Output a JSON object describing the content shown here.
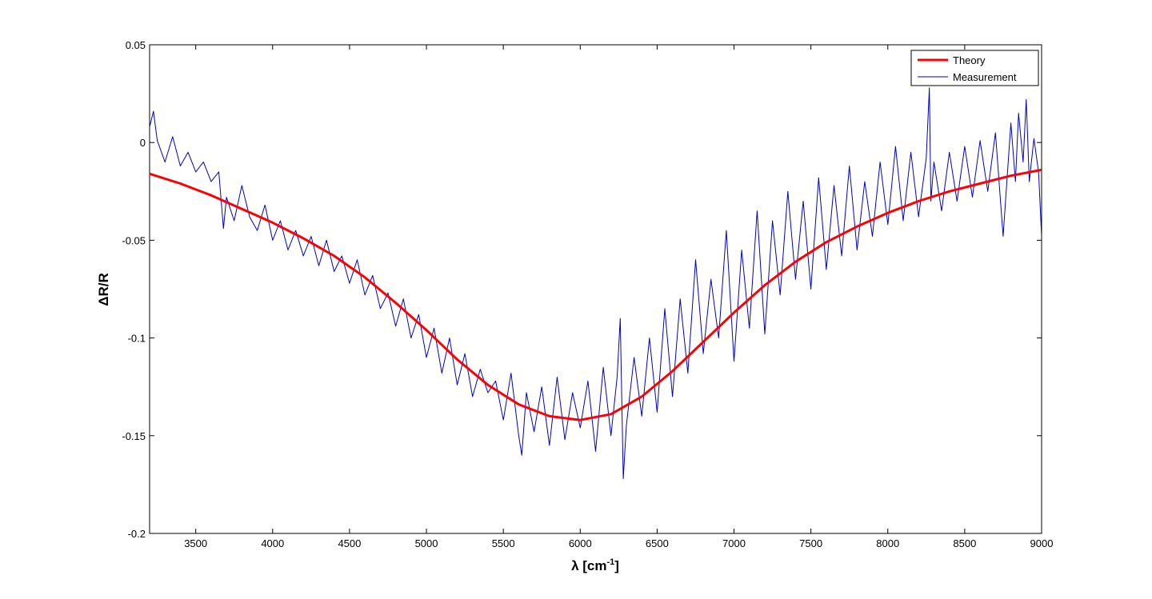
{
  "chart_data": {
    "type": "line",
    "title": "",
    "xlabel": {
      "main": "λ [cm",
      "sup": "-1",
      "close": "]"
    },
    "ylabel": "ΔR/R",
    "xlim": [
      3200,
      9000
    ],
    "ylim": [
      -0.2,
      0.05
    ],
    "x_ticks": [
      3500,
      4000,
      4500,
      5000,
      5500,
      6000,
      6500,
      7000,
      7500,
      8000,
      8500,
      9000
    ],
    "x_tick_labels": [
      "3500",
      "4000",
      "4500",
      "5000",
      "5500",
      "6000",
      "6500",
      "7000",
      "7500",
      "8000",
      "8500",
      "9000"
    ],
    "y_ticks": [
      -0.2,
      -0.15,
      -0.1,
      -0.05,
      0,
      0.05
    ],
    "y_tick_labels": [
      "-0.2",
      "-0.15",
      "-0.1",
      "-0.05",
      "0",
      "0.05"
    ],
    "grid": false,
    "legend_position": "top-right",
    "colors": {
      "theory": "#ff0000",
      "measurement": "#0000cc"
    },
    "series": [
      {
        "name": "Theory",
        "x": [
          3200,
          3400,
          3600,
          3800,
          4000,
          4200,
          4400,
          4600,
          4800,
          5000,
          5200,
          5400,
          5600,
          5800,
          6000,
          6200,
          6400,
          6600,
          6800,
          7000,
          7200,
          7400,
          7600,
          7800,
          8000,
          8200,
          8400,
          8600,
          8800,
          9000
        ],
        "values": [
          -0.016,
          -0.021,
          -0.027,
          -0.034,
          -0.041,
          -0.049,
          -0.058,
          -0.069,
          -0.082,
          -0.096,
          -0.111,
          -0.124,
          -0.134,
          -0.14,
          -0.142,
          -0.139,
          -0.13,
          -0.117,
          -0.102,
          -0.087,
          -0.073,
          -0.061,
          -0.051,
          -0.043,
          -0.036,
          -0.03,
          -0.025,
          -0.021,
          -0.017,
          -0.014
        ]
      },
      {
        "name": "Measurement",
        "x": [
          3200,
          3225,
          3250,
          3300,
          3350,
          3400,
          3450,
          3500,
          3550,
          3600,
          3650,
          3680,
          3700,
          3750,
          3800,
          3850,
          3900,
          3950,
          4000,
          4050,
          4100,
          4150,
          4200,
          4250,
          4300,
          4350,
          4400,
          4450,
          4500,
          4550,
          4600,
          4650,
          4700,
          4750,
          4800,
          4850,
          4900,
          4950,
          5000,
          5050,
          5100,
          5150,
          5200,
          5250,
          5300,
          5350,
          5400,
          5450,
          5500,
          5550,
          5600,
          5620,
          5650,
          5700,
          5750,
          5800,
          5850,
          5900,
          5950,
          6000,
          6050,
          6100,
          6150,
          6200,
          6240,
          6260,
          6280,
          6300,
          6350,
          6400,
          6450,
          6500,
          6550,
          6600,
          6650,
          6700,
          6750,
          6800,
          6850,
          6900,
          6950,
          7000,
          7050,
          7100,
          7150,
          7200,
          7250,
          7300,
          7350,
          7400,
          7450,
          7500,
          7550,
          7600,
          7650,
          7700,
          7750,
          7800,
          7850,
          7900,
          7950,
          8000,
          8050,
          8100,
          8150,
          8200,
          8250,
          8270,
          8280,
          8300,
          8350,
          8400,
          8450,
          8500,
          8550,
          8600,
          8650,
          8700,
          8750,
          8800,
          8830,
          8850,
          8880,
          8900,
          8920,
          8950,
          8980,
          9000
        ],
        "values": [
          0.008,
          0.016,
          0.001,
          -0.01,
          0.003,
          -0.012,
          -0.005,
          -0.015,
          -0.01,
          -0.02,
          -0.015,
          -0.044,
          -0.028,
          -0.04,
          -0.022,
          -0.038,
          -0.045,
          -0.032,
          -0.05,
          -0.04,
          -0.055,
          -0.045,
          -0.058,
          -0.048,
          -0.063,
          -0.05,
          -0.066,
          -0.058,
          -0.072,
          -0.06,
          -0.078,
          -0.068,
          -0.085,
          -0.077,
          -0.094,
          -0.08,
          -0.1,
          -0.088,
          -0.11,
          -0.095,
          -0.118,
          -0.1,
          -0.124,
          -0.108,
          -0.13,
          -0.116,
          -0.128,
          -0.122,
          -0.142,
          -0.118,
          -0.15,
          -0.16,
          -0.128,
          -0.148,
          -0.125,
          -0.155,
          -0.12,
          -0.152,
          -0.128,
          -0.146,
          -0.122,
          -0.158,
          -0.115,
          -0.15,
          -0.12,
          -0.09,
          -0.172,
          -0.145,
          -0.11,
          -0.14,
          -0.1,
          -0.138,
          -0.085,
          -0.13,
          -0.08,
          -0.118,
          -0.06,
          -0.108,
          -0.07,
          -0.1,
          -0.045,
          -0.112,
          -0.055,
          -0.095,
          -0.035,
          -0.098,
          -0.04,
          -0.078,
          -0.025,
          -0.07,
          -0.03,
          -0.075,
          -0.018,
          -0.065,
          -0.022,
          -0.058,
          -0.012,
          -0.055,
          -0.02,
          -0.048,
          -0.01,
          -0.042,
          -0.002,
          -0.04,
          -0.005,
          -0.038,
          -0.008,
          0.028,
          -0.03,
          -0.01,
          -0.035,
          -0.005,
          -0.03,
          -0.002,
          -0.028,
          0.001,
          -0.025,
          0.005,
          -0.048,
          0.01,
          -0.02,
          0.015,
          -0.01,
          0.022,
          -0.02,
          0.002,
          -0.015,
          -0.048
        ]
      }
    ]
  }
}
